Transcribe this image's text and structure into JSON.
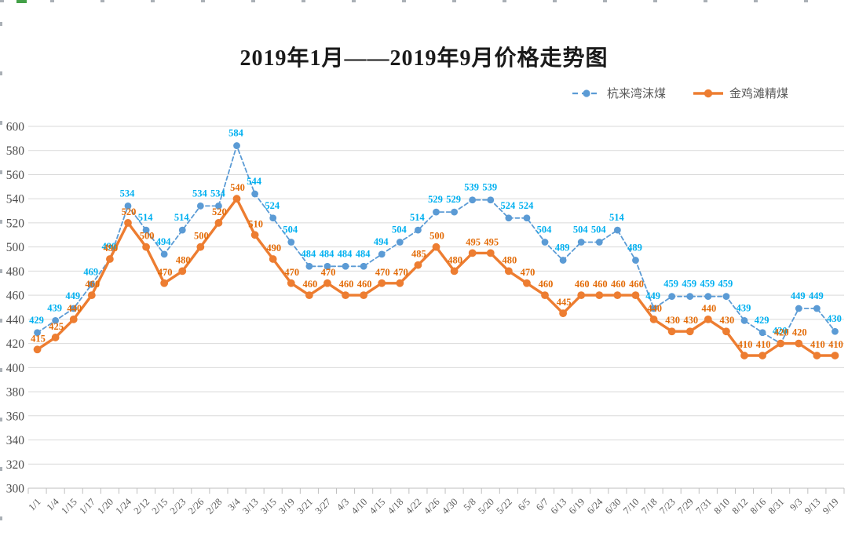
{
  "title": {
    "text": "2019年1月——2019年9月价格走势图"
  },
  "chart_data": {
    "type": "line",
    "title": "2019年1月——2019年9月价格走势图",
    "categories": [
      "1/1",
      "1/4",
      "1/15",
      "1/17",
      "1/20",
      "1/24",
      "2/12",
      "2/15",
      "2/23",
      "2/26",
      "2/28",
      "3/4",
      "3/13",
      "3/15",
      "3/19",
      "3/21",
      "3/27",
      "4/3",
      "4/10",
      "4/15",
      "4/18",
      "4/22",
      "4/26",
      "4/30",
      "5/8",
      "5/20",
      "5/22",
      "6/5",
      "6/7",
      "6/13",
      "6/19",
      "6/24",
      "6/30",
      "7/10",
      "7/18",
      "7/23",
      "7/29",
      "7/31",
      "8/10",
      "8/12",
      "8/16",
      "8/31",
      "9/3",
      "9/13",
      "9/19"
    ],
    "series": [
      {
        "name": "杭来湾沫煤",
        "style": "dashed",
        "marker": "circle",
        "color": "#5B9BD5",
        "label_color": "#00B0F0",
        "values": [
          429,
          439,
          449,
          469,
          490,
          534,
          514,
          494,
          514,
          534,
          534,
          584,
          544,
          524,
          504,
          484,
          484,
          484,
          484,
          494,
          504,
          514,
          529,
          529,
          539,
          539,
          524,
          524,
          504,
          489,
          504,
          504,
          514,
          489,
          449,
          459,
          459,
          459,
          459,
          439,
          429,
          420,
          449,
          449,
          430
        ]
      },
      {
        "name": "金鸡滩精煤",
        "style": "solid",
        "marker": "circle",
        "color": "#ED7D31",
        "label_color": "#E36C09",
        "values": [
          415,
          425,
          440,
          460,
          490,
          520,
          500,
          470,
          480,
          500,
          520,
          540,
          510,
          490,
          470,
          460,
          470,
          460,
          460,
          470,
          470,
          485,
          500,
          480,
          495,
          495,
          480,
          470,
          460,
          445,
          460,
          460,
          460,
          460,
          440,
          430,
          430,
          440,
          430,
          410,
          410,
          420,
          420,
          410,
          410
        ]
      }
    ],
    "ylim": [
      300,
      600
    ],
    "ytick_step": 20,
    "yticks": [
      300,
      320,
      340,
      360,
      380,
      400,
      420,
      440,
      460,
      480,
      500,
      520,
      540,
      560,
      580,
      600
    ],
    "grid": true,
    "data_labels": true,
    "legend_position": "top-right",
    "axis_label_color": "#4d4d4d",
    "gridline_color": "#D9D9D9",
    "axisline_color": "#BFBFBF"
  }
}
